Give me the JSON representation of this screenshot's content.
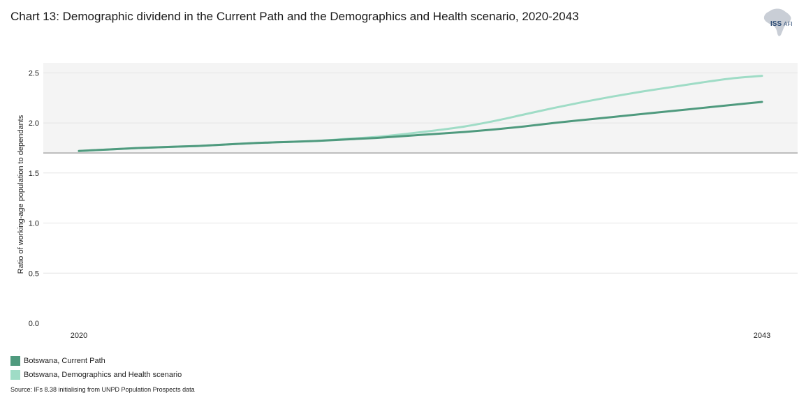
{
  "title": "Chart 13: Demographic dividend in the Current Path and the Demographics and Health scenario, 2020-2043",
  "logo": {
    "iss": "ISS",
    "afi": "AFI",
    "icon": "africa-map-icon"
  },
  "source": "Source: IFs 8.38 initialising from UNPD Population Prospects data",
  "colors": {
    "current_path": "#4f9a7e",
    "scenario": "#9fdcc6",
    "band": "#f4f4f4",
    "threshold": "#a6a6a6",
    "grid": "#e4e4e4"
  },
  "chart_data": {
    "type": "line",
    "title": "Chart 13: Demographic dividend in the Current Path and the Demographics and Health scenario, 2020-2043",
    "xlabel": "",
    "ylabel": "Ratio of working-age population to dependants",
    "xlim": [
      2020,
      2043
    ],
    "ylim": [
      0,
      2.5
    ],
    "x_ticks": [
      "2020",
      "2043"
    ],
    "y_ticks": [
      "0.0",
      "0.5",
      "1.0",
      "1.5",
      "2.0",
      "2.5"
    ],
    "y_tick_values": [
      0,
      0.5,
      1.0,
      1.5,
      2.0,
      2.5
    ],
    "threshold": 1.7,
    "band": [
      1.7,
      2.6
    ],
    "grid": true,
    "legend_position": "bottom-left",
    "x": [
      2020,
      2021,
      2022,
      2023,
      2024,
      2025,
      2026,
      2027,
      2028,
      2029,
      2030,
      2031,
      2032,
      2033,
      2034,
      2035,
      2036,
      2037,
      2038,
      2039,
      2040,
      2041,
      2042,
      2043
    ],
    "series": [
      {
        "name": "Botswana, Current Path",
        "key": "current_path",
        "values": [
          1.72,
          1.735,
          1.75,
          1.76,
          1.77,
          1.785,
          1.8,
          1.81,
          1.82,
          1.835,
          1.85,
          1.87,
          1.89,
          1.91,
          1.935,
          1.965,
          2.0,
          2.03,
          2.06,
          2.09,
          2.12,
          2.15,
          2.18,
          2.21
        ]
      },
      {
        "name": "Botswana, Demographics and Health scenario",
        "key": "scenario",
        "values": [
          1.72,
          1.735,
          1.75,
          1.76,
          1.77,
          1.785,
          1.8,
          1.81,
          1.82,
          1.84,
          1.86,
          1.89,
          1.925,
          1.965,
          2.02,
          2.085,
          2.15,
          2.21,
          2.265,
          2.315,
          2.36,
          2.405,
          2.445,
          2.47
        ]
      }
    ]
  }
}
